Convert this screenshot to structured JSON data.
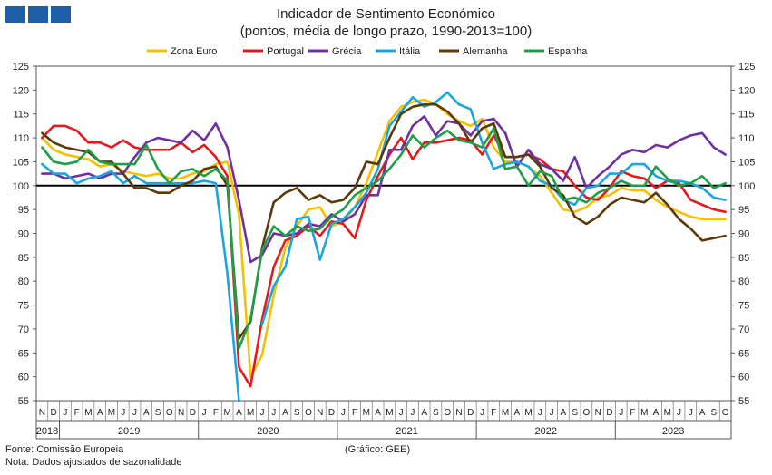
{
  "header": {
    "title": "Indicador de Sentimento Económico",
    "subtitle": "(pontos, média de longo prazo, 1990-2013=100)"
  },
  "footer": {
    "source": "Fonte: Comissão Europeia",
    "note": "Nota: Dados ajustados de sazonalidade",
    "credit": "(Gráfico: GEE)"
  },
  "chart_data": {
    "type": "line",
    "title": "Indicador de Sentimento Económico",
    "subtitle": "(pontos, média de longo prazo, 1990-2013=100)",
    "ylim": [
      55,
      125
    ],
    "yticks": [
      55,
      60,
      65,
      70,
      75,
      80,
      85,
      90,
      95,
      100,
      105,
      110,
      115,
      120,
      125
    ],
    "reference_line": 100,
    "legend_position": "top",
    "month_labels": [
      "N",
      "D",
      "J",
      "F",
      "M",
      "A",
      "M",
      "J",
      "J",
      "A",
      "S",
      "O",
      "N",
      "D",
      "J",
      "F",
      "M",
      "A",
      "M",
      "J",
      "J",
      "A",
      "S",
      "O",
      "N",
      "D",
      "J",
      "F",
      "M",
      "A",
      "M",
      "J",
      "J",
      "A",
      "S",
      "O",
      "N",
      "D",
      "J",
      "F",
      "M",
      "A",
      "M",
      "J",
      "J",
      "A",
      "S",
      "O",
      "N",
      "D",
      "J",
      "F",
      "M",
      "A",
      "M",
      "J",
      "J",
      "A",
      "S",
      "O"
    ],
    "years": [
      {
        "label": "2018",
        "start": 0,
        "count": 2
      },
      {
        "label": "2019",
        "start": 2,
        "count": 12
      },
      {
        "label": "2020",
        "start": 14,
        "count": 12
      },
      {
        "label": "2021",
        "start": 26,
        "count": 12
      },
      {
        "label": "2022",
        "start": 38,
        "count": 12
      },
      {
        "label": "2023",
        "start": 50,
        "count": 10
      }
    ],
    "series": [
      {
        "name": "Zona Euro",
        "color": "#f5c000",
        "values": [
          110.0,
          107.5,
          106.5,
          106.0,
          105.5,
          104.0,
          104.5,
          103.0,
          102.5,
          102.0,
          102.5,
          101.5,
          101.5,
          102.5,
          103.0,
          104.5,
          105.0,
          94.0,
          60.0,
          64.5,
          77.0,
          87.0,
          91.5,
          95.0,
          95.5,
          91.5,
          92.5,
          95.5,
          100.5,
          107.0,
          113.5,
          116.5,
          117.5,
          118.0,
          117.0,
          115.0,
          113.5,
          112.5,
          114.0,
          108.0,
          105.0,
          105.0,
          104.0,
          102.0,
          98.5,
          95.0,
          94.5,
          95.5,
          97.5,
          98.0,
          99.5,
          99.0,
          99.0,
          97.0,
          95.5,
          94.5,
          93.5,
          93.0,
          93.0,
          93.0
        ]
      },
      {
        "name": "Portugal",
        "color": "#e31a1c",
        "values": [
          110.0,
          112.5,
          112.5,
          111.5,
          109.0,
          109.0,
          108.0,
          109.5,
          108.0,
          107.5,
          107.5,
          107.5,
          109.0,
          107.0,
          108.5,
          106.0,
          102.0,
          62.0,
          58.0,
          72.0,
          83.0,
          88.5,
          89.5,
          91.5,
          89.5,
          92.5,
          92.0,
          89.0,
          97.0,
          102.0,
          106.5,
          110.0,
          105.5,
          109.0,
          109.0,
          109.5,
          110.0,
          109.5,
          106.5,
          110.5,
          106.0,
          106.0,
          106.5,
          105.5,
          103.5,
          103.0,
          100.0,
          97.5,
          97.0,
          99.5,
          103.0,
          102.0,
          101.5,
          99.5,
          101.0,
          100.5,
          97.0,
          96.0,
          95.0,
          94.5
        ]
      },
      {
        "name": "Grécia",
        "color": "#7030a0",
        "values": [
          102.5,
          102.5,
          101.5,
          102.0,
          102.5,
          101.5,
          102.5,
          102.5,
          106.0,
          109.0,
          110.0,
          109.5,
          109.0,
          111.5,
          109.5,
          113.0,
          108.0,
          97.0,
          84.0,
          85.5,
          90.0,
          89.5,
          90.0,
          92.0,
          91.5,
          94.0,
          92.5,
          94.0,
          98.0,
          98.0,
          107.5,
          107.5,
          112.5,
          114.5,
          110.5,
          113.5,
          113.0,
          110.5,
          113.5,
          114.0,
          111.0,
          104.0,
          107.5,
          104.5,
          103.5,
          101.0,
          106.0,
          99.5,
          102.0,
          104.0,
          106.5,
          107.5,
          107.0,
          108.5,
          108.0,
          109.5,
          110.5,
          111.0,
          108.0,
          106.5
        ]
      },
      {
        "name": "Itália",
        "color": "#1ba5de",
        "values": [
          104.5,
          102.5,
          102.5,
          100.5,
          101.5,
          102.0,
          103.0,
          100.5,
          102.0,
          100.5,
          100.5,
          100.5,
          100.5,
          100.5,
          101.0,
          100.5,
          81.5,
          55.0,
          null,
          71.0,
          79.0,
          83.0,
          93.0,
          93.5,
          84.5,
          92.0,
          93.0,
          95.5,
          98.5,
          103.5,
          112.5,
          115.5,
          118.5,
          116.5,
          117.5,
          119.5,
          117.0,
          116.0,
          109.0,
          103.5,
          104.5,
          105.0,
          104.0,
          101.0,
          100.0,
          97.0,
          96.0,
          99.5,
          100.0,
          102.5,
          102.5,
          104.5,
          104.5,
          102.0,
          101.0,
          101.0,
          100.5,
          99.5,
          97.5,
          97.0
        ]
      },
      {
        "name": "Alemanha",
        "color": "#5b3a0a",
        "values": [
          111.0,
          109.0,
          108.0,
          107.5,
          107.0,
          105.0,
          105.0,
          102.5,
          99.5,
          99.5,
          98.5,
          98.5,
          100.0,
          101.0,
          103.5,
          104.0,
          100.0,
          68.0,
          71.5,
          87.0,
          96.5,
          98.5,
          99.5,
          97.0,
          98.0,
          96.5,
          97.0,
          99.5,
          105.0,
          104.5,
          110.0,
          115.0,
          116.5,
          117.0,
          117.0,
          115.5,
          113.0,
          109.0,
          112.0,
          113.0,
          106.0,
          106.0,
          106.5,
          104.0,
          99.5,
          98.0,
          93.5,
          92.0,
          93.5,
          96.0,
          97.5,
          97.0,
          96.5,
          98.5,
          96.0,
          93.0,
          91.0,
          88.5,
          89.0,
          89.5
        ]
      },
      {
        "name": "Espanha",
        "color": "#1f9e48",
        "values": [
          108.0,
          105.0,
          104.5,
          105.0,
          107.5,
          105.0,
          104.5,
          104.5,
          104.5,
          108.5,
          103.5,
          100.5,
          103.0,
          103.5,
          102.0,
          103.5,
          101.0,
          66.0,
          72.0,
          86.5,
          91.5,
          89.5,
          91.5,
          90.5,
          91.0,
          93.5,
          95.0,
          98.0,
          99.5,
          101.0,
          103.5,
          106.5,
          110.5,
          108.0,
          110.0,
          111.5,
          109.5,
          109.0,
          108.0,
          112.0,
          103.5,
          104.0,
          100.0,
          103.0,
          102.0,
          97.0,
          97.5,
          96.5,
          98.5,
          99.5,
          101.0,
          100.0,
          100.0,
          104.0,
          101.5,
          100.0,
          100.5,
          102.0,
          99.5,
          100.5
        ]
      }
    ]
  }
}
